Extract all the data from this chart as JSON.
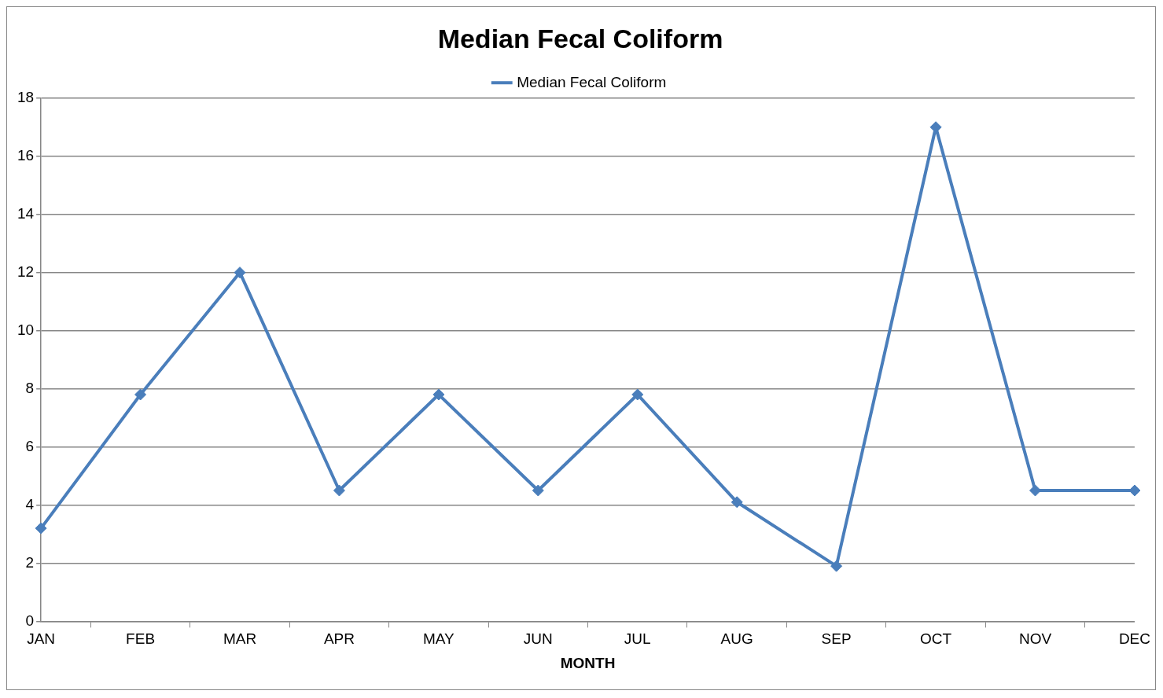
{
  "chart_data": {
    "type": "line",
    "title": "Median Fecal Coliform",
    "xlabel": "MONTH",
    "categories": [
      "JAN",
      "FEB",
      "MAR",
      "APR",
      "MAY",
      "JUN",
      "JUL",
      "AUG",
      "SEP",
      "OCT",
      "NOV",
      "DEC"
    ],
    "series": [
      {
        "name": "Median Fecal Coliform",
        "color": "#4a7ebb",
        "values": [
          3.2,
          7.8,
          12,
          4.5,
          7.8,
          4.5,
          7.8,
          4.1,
          1.9,
          17,
          4.5,
          4.5
        ]
      }
    ],
    "ylim": [
      0,
      18
    ],
    "yticks": [
      0,
      2,
      4,
      6,
      8,
      10,
      12,
      14,
      16,
      18
    ],
    "grid": "y",
    "legend": "top",
    "marker": "diamond",
    "line_style": "solid"
  }
}
